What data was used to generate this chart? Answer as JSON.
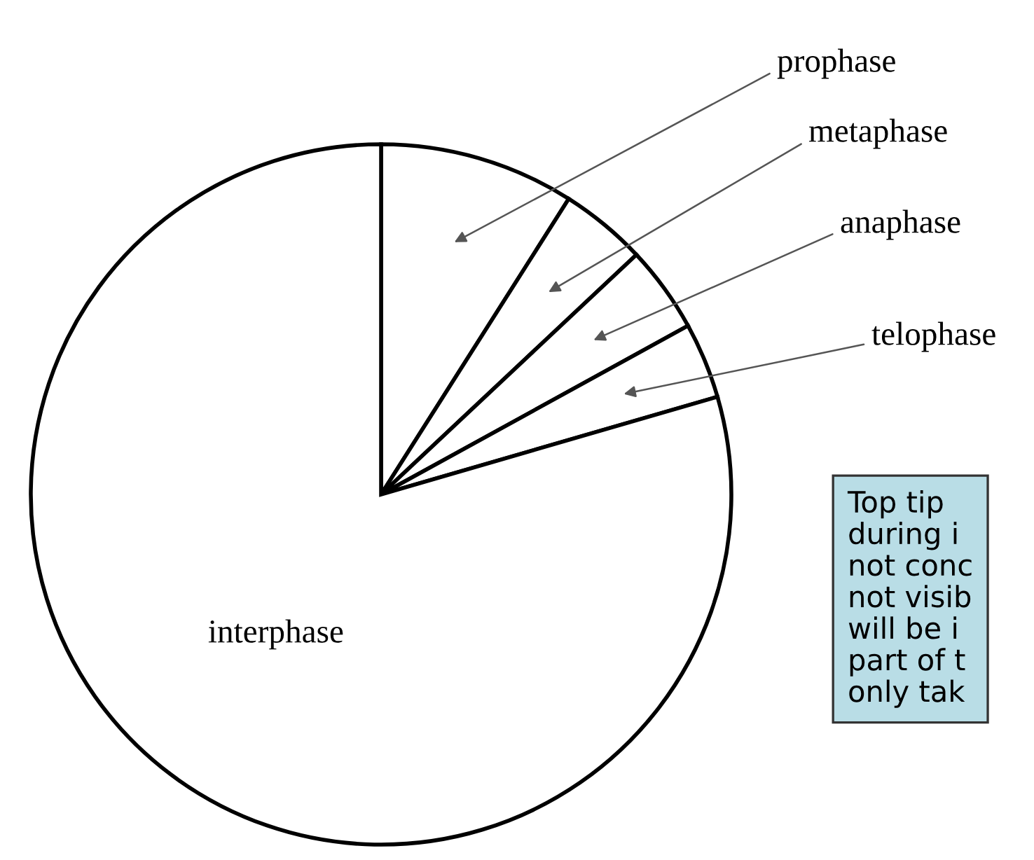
{
  "chart_data": {
    "type": "pie",
    "categories": [
      "prophase",
      "metaphase",
      "anaphase",
      "telophase",
      "interphase"
    ],
    "values": [
      9,
      4,
      4,
      3.5,
      79.5
    ],
    "colors": [
      "#ffffff",
      "#ffffff",
      "#ffffff",
      "#ffffff",
      "#ffffff"
    ],
    "annotations": [
      "Top tip\nduring i\nnot conc\nnot visib\nwill be i\npart of t\nonly tak"
    ]
  }
}
